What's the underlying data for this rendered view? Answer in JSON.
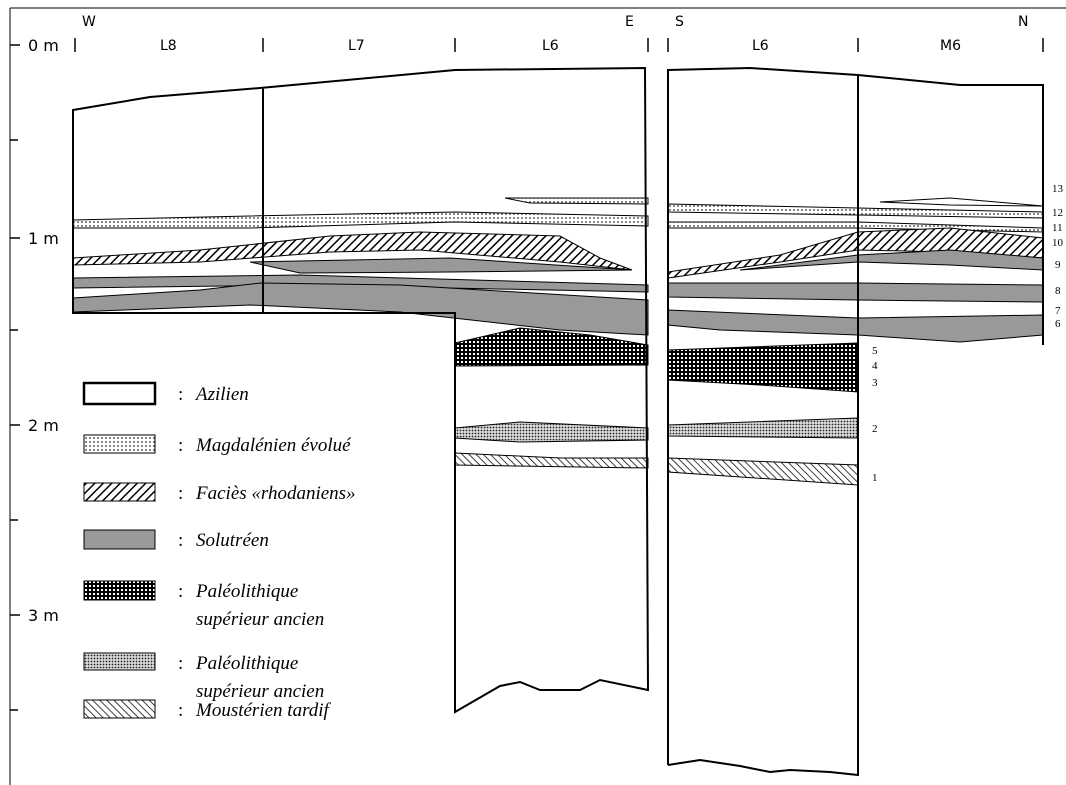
{
  "depth_labels": [
    "0 m",
    "1 m",
    "2 m",
    "3 m"
  ],
  "sections": [
    {
      "start": "W",
      "end": "E",
      "squares": [
        "L8",
        "L7",
        "L6"
      ]
    },
    {
      "start": "S",
      "end": "N",
      "squares": [
        "L6",
        "M6"
      ]
    }
  ],
  "layer_numbers": [
    "1",
    "2",
    "3",
    "4",
    "5",
    "6",
    "7",
    "8",
    "9",
    "10",
    "11",
    "12",
    "13"
  ],
  "legend": {
    "separator": ":",
    "items": [
      {
        "lines": [
          "Azilien"
        ]
      },
      {
        "lines": [
          "Magdalénien évolué"
        ]
      },
      {
        "lines": [
          "Faciès «rhodaniens»"
        ]
      },
      {
        "lines": [
          "Solutréen"
        ]
      },
      {
        "lines": [
          "Paléolithique",
          "supérieur ancien"
        ]
      },
      {
        "lines": [
          "Paléolithique",
          "supérieur ancien"
        ]
      },
      {
        "lines": [
          "Moustérien tardif"
        ]
      }
    ]
  }
}
